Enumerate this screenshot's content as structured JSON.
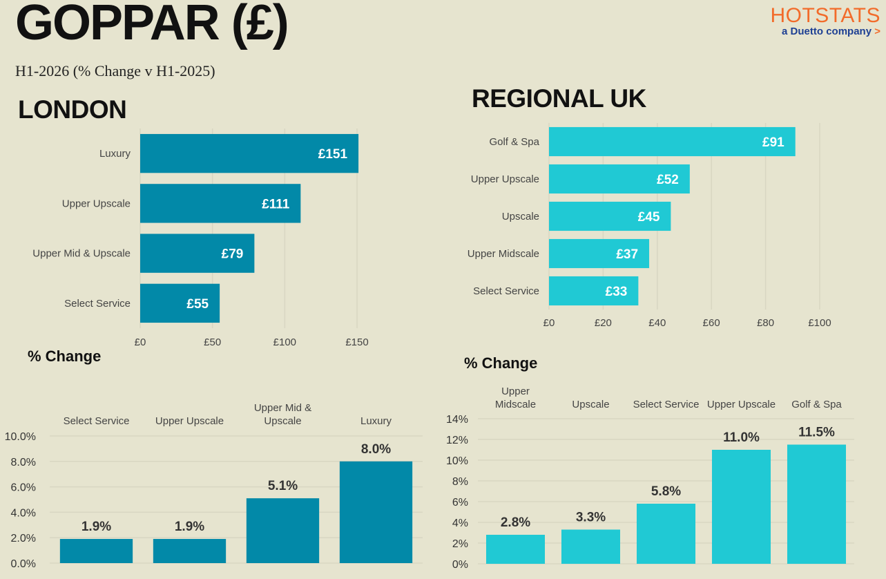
{
  "header": {
    "title": "GOPPAR (£)",
    "subtitle": "H1-2026 (% Change v H1-2025)",
    "logo_main": "HOTSTATS",
    "logo_sub": "a Duetto company",
    "logo_arrow": ">"
  },
  "sections": {
    "london": "LONDON",
    "regional": "REGIONAL UK",
    "change_label": "% Change"
  },
  "colors": {
    "background": "#e6e4cf",
    "london": "#0289a8",
    "regional": "#20c9d4",
    "gridline": "#d8d6c2",
    "logo_orange": "#f26b2a",
    "logo_blue": "#1d3f93"
  },
  "chart_data": [
    {
      "id": "london-goppar",
      "type": "bar",
      "orientation": "horizontal",
      "categories": [
        "Luxury",
        "Upper Upscale",
        "Upper Mid & Upscale",
        "Select Service"
      ],
      "values": [
        151,
        111,
        79,
        55
      ],
      "data_labels": [
        "£151",
        "£111",
        "£79",
        "£55"
      ],
      "xlim": [
        0,
        150
      ],
      "xticks": [
        0,
        50,
        100,
        150
      ],
      "xtick_labels": [
        "£0",
        "£50",
        "£100",
        "£150"
      ],
      "grid": true,
      "color": "#0289a8"
    },
    {
      "id": "regional-goppar",
      "type": "bar",
      "orientation": "horizontal",
      "categories": [
        "Golf & Spa",
        "Upper Upscale",
        "Upscale",
        "Upper Midscale",
        "Select Service"
      ],
      "values": [
        91,
        52,
        45,
        37,
        33
      ],
      "data_labels": [
        "£91",
        "£52",
        "£45",
        "£37",
        "£33"
      ],
      "xlim": [
        0,
        100
      ],
      "xticks": [
        0,
        20,
        40,
        60,
        80,
        100
      ],
      "xtick_labels": [
        "£0",
        "£20",
        "£40",
        "£60",
        "£80",
        "£100"
      ],
      "grid": true,
      "color": "#20c9d4"
    },
    {
      "id": "london-change",
      "type": "bar",
      "orientation": "vertical",
      "categories": [
        "Select Service",
        "Upper Upscale",
        "Upper Mid & Upscale",
        "Luxury"
      ],
      "category_lines": [
        [
          "Select Service"
        ],
        [
          "Upper Upscale"
        ],
        [
          "Upper Mid &",
          "Upscale"
        ],
        [
          "Luxury"
        ]
      ],
      "values": [
        1.9,
        1.9,
        5.1,
        8.0
      ],
      "data_labels": [
        "1.9%",
        "1.9%",
        "5.1%",
        "8.0%"
      ],
      "ylim": [
        0,
        10
      ],
      "yticks": [
        0,
        2,
        4,
        6,
        8,
        10
      ],
      "ytick_labels": [
        "0.0%",
        "2.0%",
        "4.0%",
        "6.0%",
        "8.0%",
        "10.0%"
      ],
      "grid": true,
      "color": "#0289a8"
    },
    {
      "id": "regional-change",
      "type": "bar",
      "orientation": "vertical",
      "categories": [
        "Upper Midscale",
        "Upscale",
        "Select Service",
        "Upper Upscale",
        "Golf & Spa"
      ],
      "category_lines": [
        [
          "Upper",
          "Midscale"
        ],
        [
          "Upscale"
        ],
        [
          "Select Service"
        ],
        [
          "Upper Upscale"
        ],
        [
          "Golf & Spa"
        ]
      ],
      "values": [
        2.8,
        3.3,
        5.8,
        11.0,
        11.5
      ],
      "data_labels": [
        "2.8%",
        "3.3%",
        "5.8%",
        "11.0%",
        "11.5%"
      ],
      "ylim": [
        0,
        14
      ],
      "yticks": [
        0,
        2,
        4,
        6,
        8,
        10,
        12,
        14
      ],
      "ytick_labels": [
        "0%",
        "2%",
        "4%",
        "6%",
        "8%",
        "10%",
        "12%",
        "14%"
      ],
      "grid": true,
      "color": "#20c9d4"
    }
  ]
}
